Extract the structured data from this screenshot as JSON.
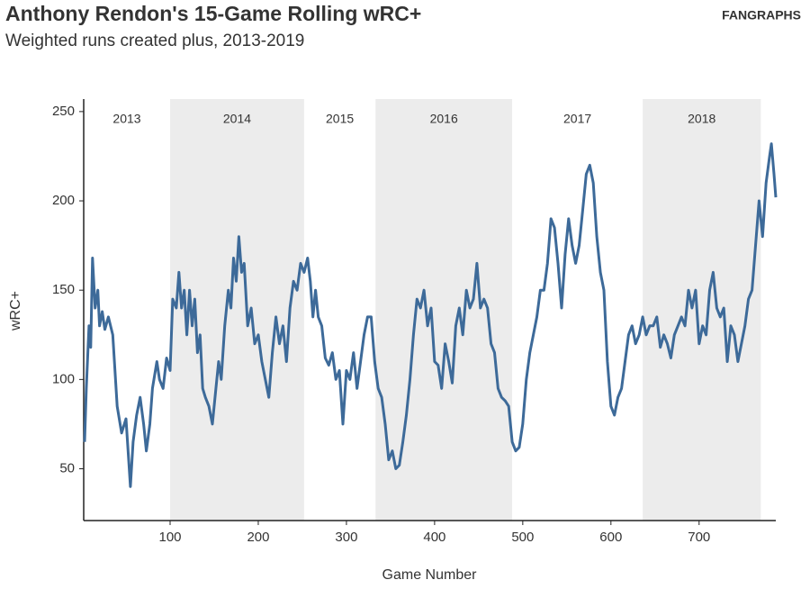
{
  "chart_data": {
    "type": "line",
    "title": "Anthony Rendon's 15-Game Rolling wRC+",
    "subtitle": "Weighted runs created plus, 2013-2019",
    "source": "FANGRAPHS",
    "xlabel": "Game Number",
    "ylabel": "wRC+",
    "xlim": [
      2,
      787
    ],
    "ylim": [
      21,
      257
    ],
    "xticks": [
      100,
      200,
      300,
      400,
      500,
      600,
      700
    ],
    "yticks": [
      50,
      100,
      150,
      200,
      250
    ],
    "seasons": [
      {
        "label": "2013",
        "start": 2,
        "end": 100,
        "shaded": false
      },
      {
        "label": "2014",
        "start": 100,
        "end": 252,
        "shaded": true
      },
      {
        "label": "2015",
        "start": 252,
        "end": 333,
        "shaded": false
      },
      {
        "label": "2016",
        "start": 333,
        "end": 488,
        "shaded": true
      },
      {
        "label": "2017",
        "start": 488,
        "end": 636,
        "shaded": false
      },
      {
        "label": "2018",
        "start": 636,
        "end": 770,
        "shaded": true
      }
    ],
    "x": [
      3,
      5,
      8,
      10,
      12,
      15,
      18,
      20,
      23,
      26,
      30,
      35,
      40,
      45,
      50,
      55,
      58,
      62,
      66,
      70,
      73,
      77,
      80,
      85,
      88,
      92,
      96,
      100,
      103,
      107,
      110,
      113,
      116,
      119,
      122,
      125,
      128,
      131,
      134,
      137,
      140,
      144,
      148,
      152,
      155,
      158,
      162,
      166,
      169,
      172,
      175,
      178,
      181,
      184,
      188,
      192,
      196,
      200,
      204,
      208,
      212,
      216,
      220,
      224,
      228,
      232,
      236,
      240,
      244,
      248,
      252,
      256,
      259,
      262,
      265,
      268,
      272,
      276,
      280,
      284,
      288,
      292,
      296,
      300,
      304,
      308,
      312,
      316,
      320,
      324,
      328,
      332,
      336,
      340,
      344,
      348,
      352,
      356,
      360,
      364,
      368,
      372,
      376,
      380,
      384,
      388,
      392,
      396,
      400,
      404,
      408,
      412,
      416,
      420,
      424,
      428,
      432,
      436,
      440,
      444,
      448,
      452,
      456,
      460,
      464,
      468,
      472,
      476,
      480,
      484,
      488,
      492,
      496,
      500,
      504,
      508,
      512,
      516,
      520,
      524,
      528,
      532,
      536,
      540,
      544,
      548,
      552,
      556,
      560,
      564,
      568,
      572,
      576,
      580,
      584,
      588,
      592,
      596,
      600,
      604,
      608,
      612,
      616,
      620,
      624,
      628,
      632,
      636,
      640,
      644,
      648,
      652,
      656,
      660,
      664,
      668,
      672,
      676,
      680,
      684,
      688,
      692,
      696,
      700,
      704,
      708,
      712,
      716,
      720,
      724,
      728,
      732,
      736,
      740,
      744,
      748,
      752,
      756,
      760,
      764,
      768,
      772,
      776,
      780,
      782,
      785,
      787
    ],
    "series": [
      {
        "name": "wRC+",
        "color": "#3d6a99",
        "values": [
          65,
          95,
          130,
          118,
          168,
          140,
          150,
          130,
          138,
          128,
          135,
          125,
          85,
          70,
          78,
          40,
          65,
          80,
          90,
          75,
          60,
          75,
          95,
          110,
          100,
          95,
          112,
          105,
          145,
          140,
          160,
          140,
          150,
          125,
          150,
          130,
          145,
          115,
          125,
          95,
          90,
          85,
          75,
          95,
          110,
          100,
          130,
          150,
          140,
          168,
          155,
          180,
          160,
          165,
          130,
          140,
          120,
          125,
          110,
          100,
          90,
          115,
          135,
          120,
          130,
          110,
          140,
          155,
          150,
          165,
          160,
          168,
          155,
          135,
          150,
          135,
          130,
          112,
          108,
          115,
          100,
          105,
          75,
          105,
          100,
          115,
          95,
          110,
          125,
          135,
          135,
          110,
          95,
          90,
          75,
          55,
          60,
          50,
          52,
          65,
          80,
          100,
          125,
          145,
          140,
          150,
          130,
          140,
          110,
          108,
          95,
          120,
          110,
          98,
          130,
          140,
          125,
          150,
          140,
          145,
          165,
          140,
          145,
          140,
          120,
          115,
          95,
          90,
          88,
          85,
          65,
          60,
          62,
          75,
          100,
          115,
          125,
          135,
          150,
          150,
          165,
          190,
          185,
          165,
          140,
          170,
          190,
          175,
          165,
          175,
          195,
          215,
          220,
          210,
          180,
          160,
          150,
          110,
          85,
          80,
          90,
          95,
          110,
          125,
          130,
          120,
          125,
          135,
          125,
          130,
          130,
          135,
          118,
          125,
          120,
          112,
          125,
          130,
          135,
          130,
          150,
          140,
          150,
          120,
          130,
          125,
          150,
          160,
          140,
          135,
          140,
          110,
          130,
          125,
          110,
          120,
          130,
          145,
          150,
          175,
          200,
          180,
          210,
          225,
          232,
          215,
          202
        ]
      }
    ]
  }
}
